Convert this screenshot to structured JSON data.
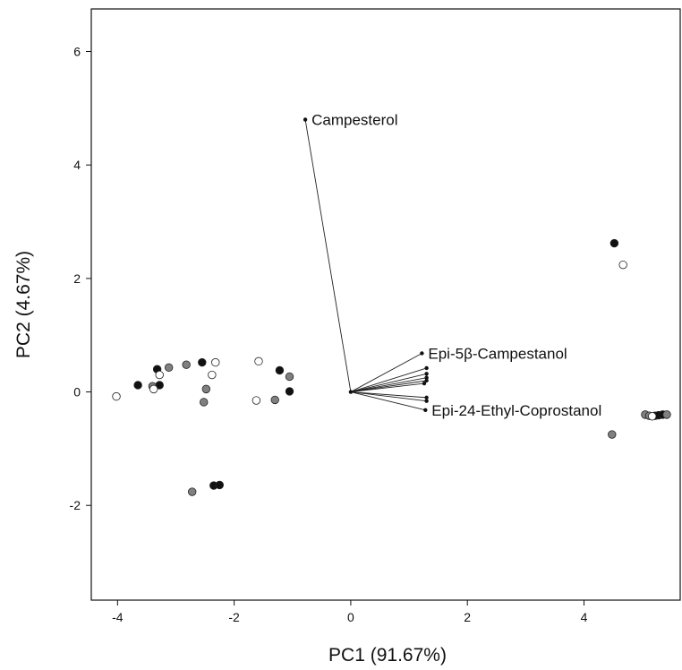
{
  "chart_data": {
    "type": "scatter",
    "title": "",
    "xlabel": "PC1 (91.67%)",
    "ylabel": "PC2 (4.67%)",
    "xlim": [
      -4.45,
      5.65
    ],
    "ylim": [
      -3.67,
      6.75
    ],
    "grid": false,
    "xticks": [
      -4,
      -2,
      0,
      2,
      4
    ],
    "yticks": [
      -2,
      0,
      2,
      4,
      6
    ],
    "colors": {
      "black": "#111111",
      "gray": "#808080",
      "white": "#ffffff",
      "outline": "#222222"
    },
    "series": [
      {
        "color_key": "black",
        "points": [
          [
            -3.65,
            0.12
          ],
          [
            -3.32,
            0.4
          ],
          [
            -3.28,
            0.12
          ],
          [
            -2.55,
            0.52
          ],
          [
            -1.22,
            0.38
          ],
          [
            -1.05,
            0.01
          ],
          [
            -2.35,
            -1.65
          ],
          [
            -2.25,
            -1.64
          ],
          [
            4.52,
            2.62
          ],
          [
            5.22,
            -0.42
          ],
          [
            5.28,
            -0.41
          ],
          [
            5.35,
            -0.4
          ]
        ]
      },
      {
        "color_key": "gray",
        "points": [
          [
            -3.4,
            0.1
          ],
          [
            -3.12,
            0.43
          ],
          [
            -2.82,
            0.48
          ],
          [
            -2.48,
            0.05
          ],
          [
            -2.52,
            -0.18
          ],
          [
            -1.3,
            -0.14
          ],
          [
            -1.05,
            0.27
          ],
          [
            -2.72,
            -1.76
          ],
          [
            4.48,
            -0.75
          ],
          [
            5.05,
            -0.4
          ],
          [
            5.12,
            -0.42
          ],
          [
            5.42,
            -0.4
          ]
        ]
      },
      {
        "color_key": "white",
        "points": [
          [
            -4.02,
            -0.08
          ],
          [
            -3.38,
            0.05
          ],
          [
            -3.28,
            0.3
          ],
          [
            -2.32,
            0.52
          ],
          [
            -2.38,
            0.3
          ],
          [
            -1.58,
            0.54
          ],
          [
            -1.62,
            -0.15
          ],
          [
            4.67,
            2.24
          ],
          [
            5.17,
            -0.43
          ]
        ]
      }
    ],
    "loadings": {
      "origin": [
        0,
        0
      ],
      "vectors": [
        {
          "end": [
            -0.78,
            4.8
          ],
          "label": "Campesterol"
        },
        {
          "end": [
            1.22,
            0.68
          ],
          "label": "Epi-5β-Campestanol"
        },
        {
          "end": [
            1.3,
            0.42
          ],
          "label": ""
        },
        {
          "end": [
            1.3,
            0.32
          ],
          "label": ""
        },
        {
          "end": [
            1.3,
            0.25
          ],
          "label": ""
        },
        {
          "end": [
            1.3,
            0.2
          ],
          "label": ""
        },
        {
          "end": [
            1.26,
            0.15
          ],
          "label": ""
        },
        {
          "end": [
            1.3,
            -0.1
          ],
          "label": ""
        },
        {
          "end": [
            1.3,
            -0.16
          ],
          "label": ""
        },
        {
          "end": [
            1.28,
            -0.32
          ],
          "label": "Epi-24-Ethyl-Coprostanol"
        }
      ]
    }
  }
}
